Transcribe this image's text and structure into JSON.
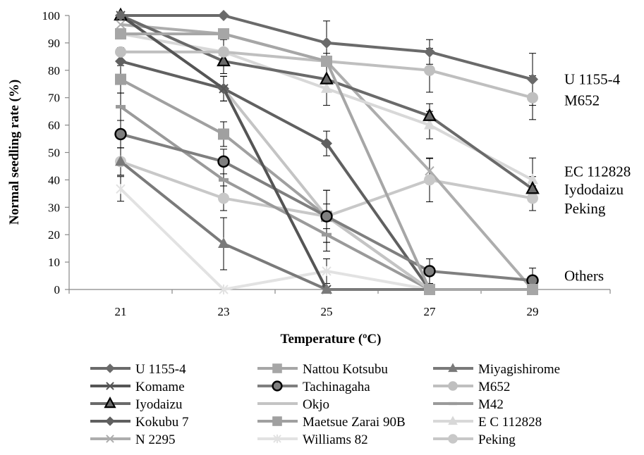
{
  "chart_data": {
    "type": "line",
    "title": "",
    "xlabel": "Temperature (ºC)",
    "ylabel": "Normal seedling rate (%)",
    "x": [
      21,
      23,
      25,
      27,
      29
    ],
    "ylim": [
      0,
      100
    ],
    "yticks": [
      0,
      10,
      20,
      30,
      40,
      50,
      60,
      70,
      80,
      90,
      100
    ],
    "grid": false,
    "legend_position": "bottom",
    "series": [
      {
        "name": "U 1155-4",
        "color": "#6a6a6a",
        "marker": "diamond",
        "values": [
          100,
          100,
          90,
          86.7,
          76.7
        ],
        "err": [
          0,
          0,
          8,
          4.5,
          9.5
        ]
      },
      {
        "name": "Nattou Kotsubu",
        "color": "#a6a6a6",
        "marker": "square",
        "values": [
          93.3,
          93.3,
          83.3,
          0,
          0
        ],
        "err": [
          0,
          0,
          0,
          0,
          0
        ]
      },
      {
        "name": "Miyagishirome",
        "color": "#7a7a7a",
        "marker": "triangle",
        "values": [
          46.7,
          16.7,
          0,
          0,
          0
        ],
        "err": [
          5,
          9.5,
          0,
          0,
          0
        ]
      },
      {
        "name": "Komame",
        "color": "#555555",
        "marker": "x",
        "values": [
          100,
          73.3,
          0,
          0,
          0
        ],
        "err": [
          0,
          4.5,
          0,
          0,
          0
        ]
      },
      {
        "name": "Tachinagaha",
        "color": "#7f7f7f",
        "marker": "circle-bold",
        "values": [
          56.7,
          46.7,
          26.7,
          6.7,
          3.3
        ],
        "err": [
          5,
          4.5,
          9.5,
          4.5,
          4.5
        ]
      },
      {
        "name": "M652",
        "color": "#bfbfbf",
        "marker": "circle",
        "values": [
          86.7,
          86.7,
          83.3,
          80,
          70
        ],
        "err": [
          0,
          0,
          0,
          8,
          8
        ]
      },
      {
        "name": "Iyodaizu",
        "color": "#6a6a6a",
        "marker": "triangle-bold",
        "values": [
          100,
          83.3,
          76.7,
          63.3,
          36.7
        ],
        "err": [
          0,
          4.5,
          9.5,
          4.5,
          4.5
        ]
      },
      {
        "name": "Okjo",
        "color": "#c4c4c4",
        "marker": "none",
        "values": [
          100,
          73.3,
          26.7,
          0,
          0
        ],
        "err": [
          0,
          0,
          0,
          0,
          0
        ]
      },
      {
        "name": "M42",
        "color": "#9a9a9a",
        "marker": "dash",
        "values": [
          66.7,
          40,
          20,
          0,
          0
        ],
        "err": [
          5,
          6,
          6,
          0,
          0
        ]
      },
      {
        "name": "Kokubu 7",
        "color": "#606060",
        "marker": "diamond",
        "values": [
          83.3,
          73.3,
          53.3,
          0,
          0
        ],
        "err": [
          5,
          4.5,
          4.5,
          0,
          0
        ]
      },
      {
        "name": "Maetsue Zarai 90B",
        "color": "#a0a0a0",
        "marker": "square",
        "values": [
          76.7,
          56.7,
          26.7,
          0,
          0
        ],
        "err": [
          5,
          4.5,
          9.5,
          0,
          0
        ]
      },
      {
        "name": "E C 112828",
        "color": "#d8d8d8",
        "marker": "triangle",
        "values": [
          93.3,
          86.7,
          73.3,
          60,
          40
        ],
        "err": [
          0,
          4.5,
          0,
          5,
          8
        ]
      },
      {
        "name": "N 2295",
        "color": "#adadad",
        "marker": "x",
        "values": [
          96.7,
          93.3,
          83.3,
          43.3,
          0
        ],
        "err": [
          0,
          0,
          0,
          4.5,
          0
        ]
      },
      {
        "name": "Williams 82",
        "color": "#e2e2e2",
        "marker": "star",
        "values": [
          36.7,
          0,
          6.7,
          0,
          0
        ],
        "err": [
          4.5,
          0,
          4.5,
          0,
          0
        ]
      },
      {
        "name": "Peking",
        "color": "#c8c8c8",
        "marker": "circle",
        "values": [
          46.7,
          33.3,
          26.7,
          40,
          33.3
        ],
        "err": [
          5,
          4.5,
          4.5,
          8,
          4.5
        ]
      }
    ],
    "annotations": [
      {
        "text": "U 1155-4",
        "x": 29,
        "y": 76.7
      },
      {
        "text": "M652",
        "x": 29,
        "y": 69
      },
      {
        "text": "EC 112828",
        "x": 29,
        "y": 43
      },
      {
        "text": "Iydodaizu",
        "x": 29,
        "y": 36.5
      },
      {
        "text": "Peking",
        "x": 29,
        "y": 29.5
      },
      {
        "text": "Others",
        "x": 29,
        "y": 5
      }
    ]
  }
}
